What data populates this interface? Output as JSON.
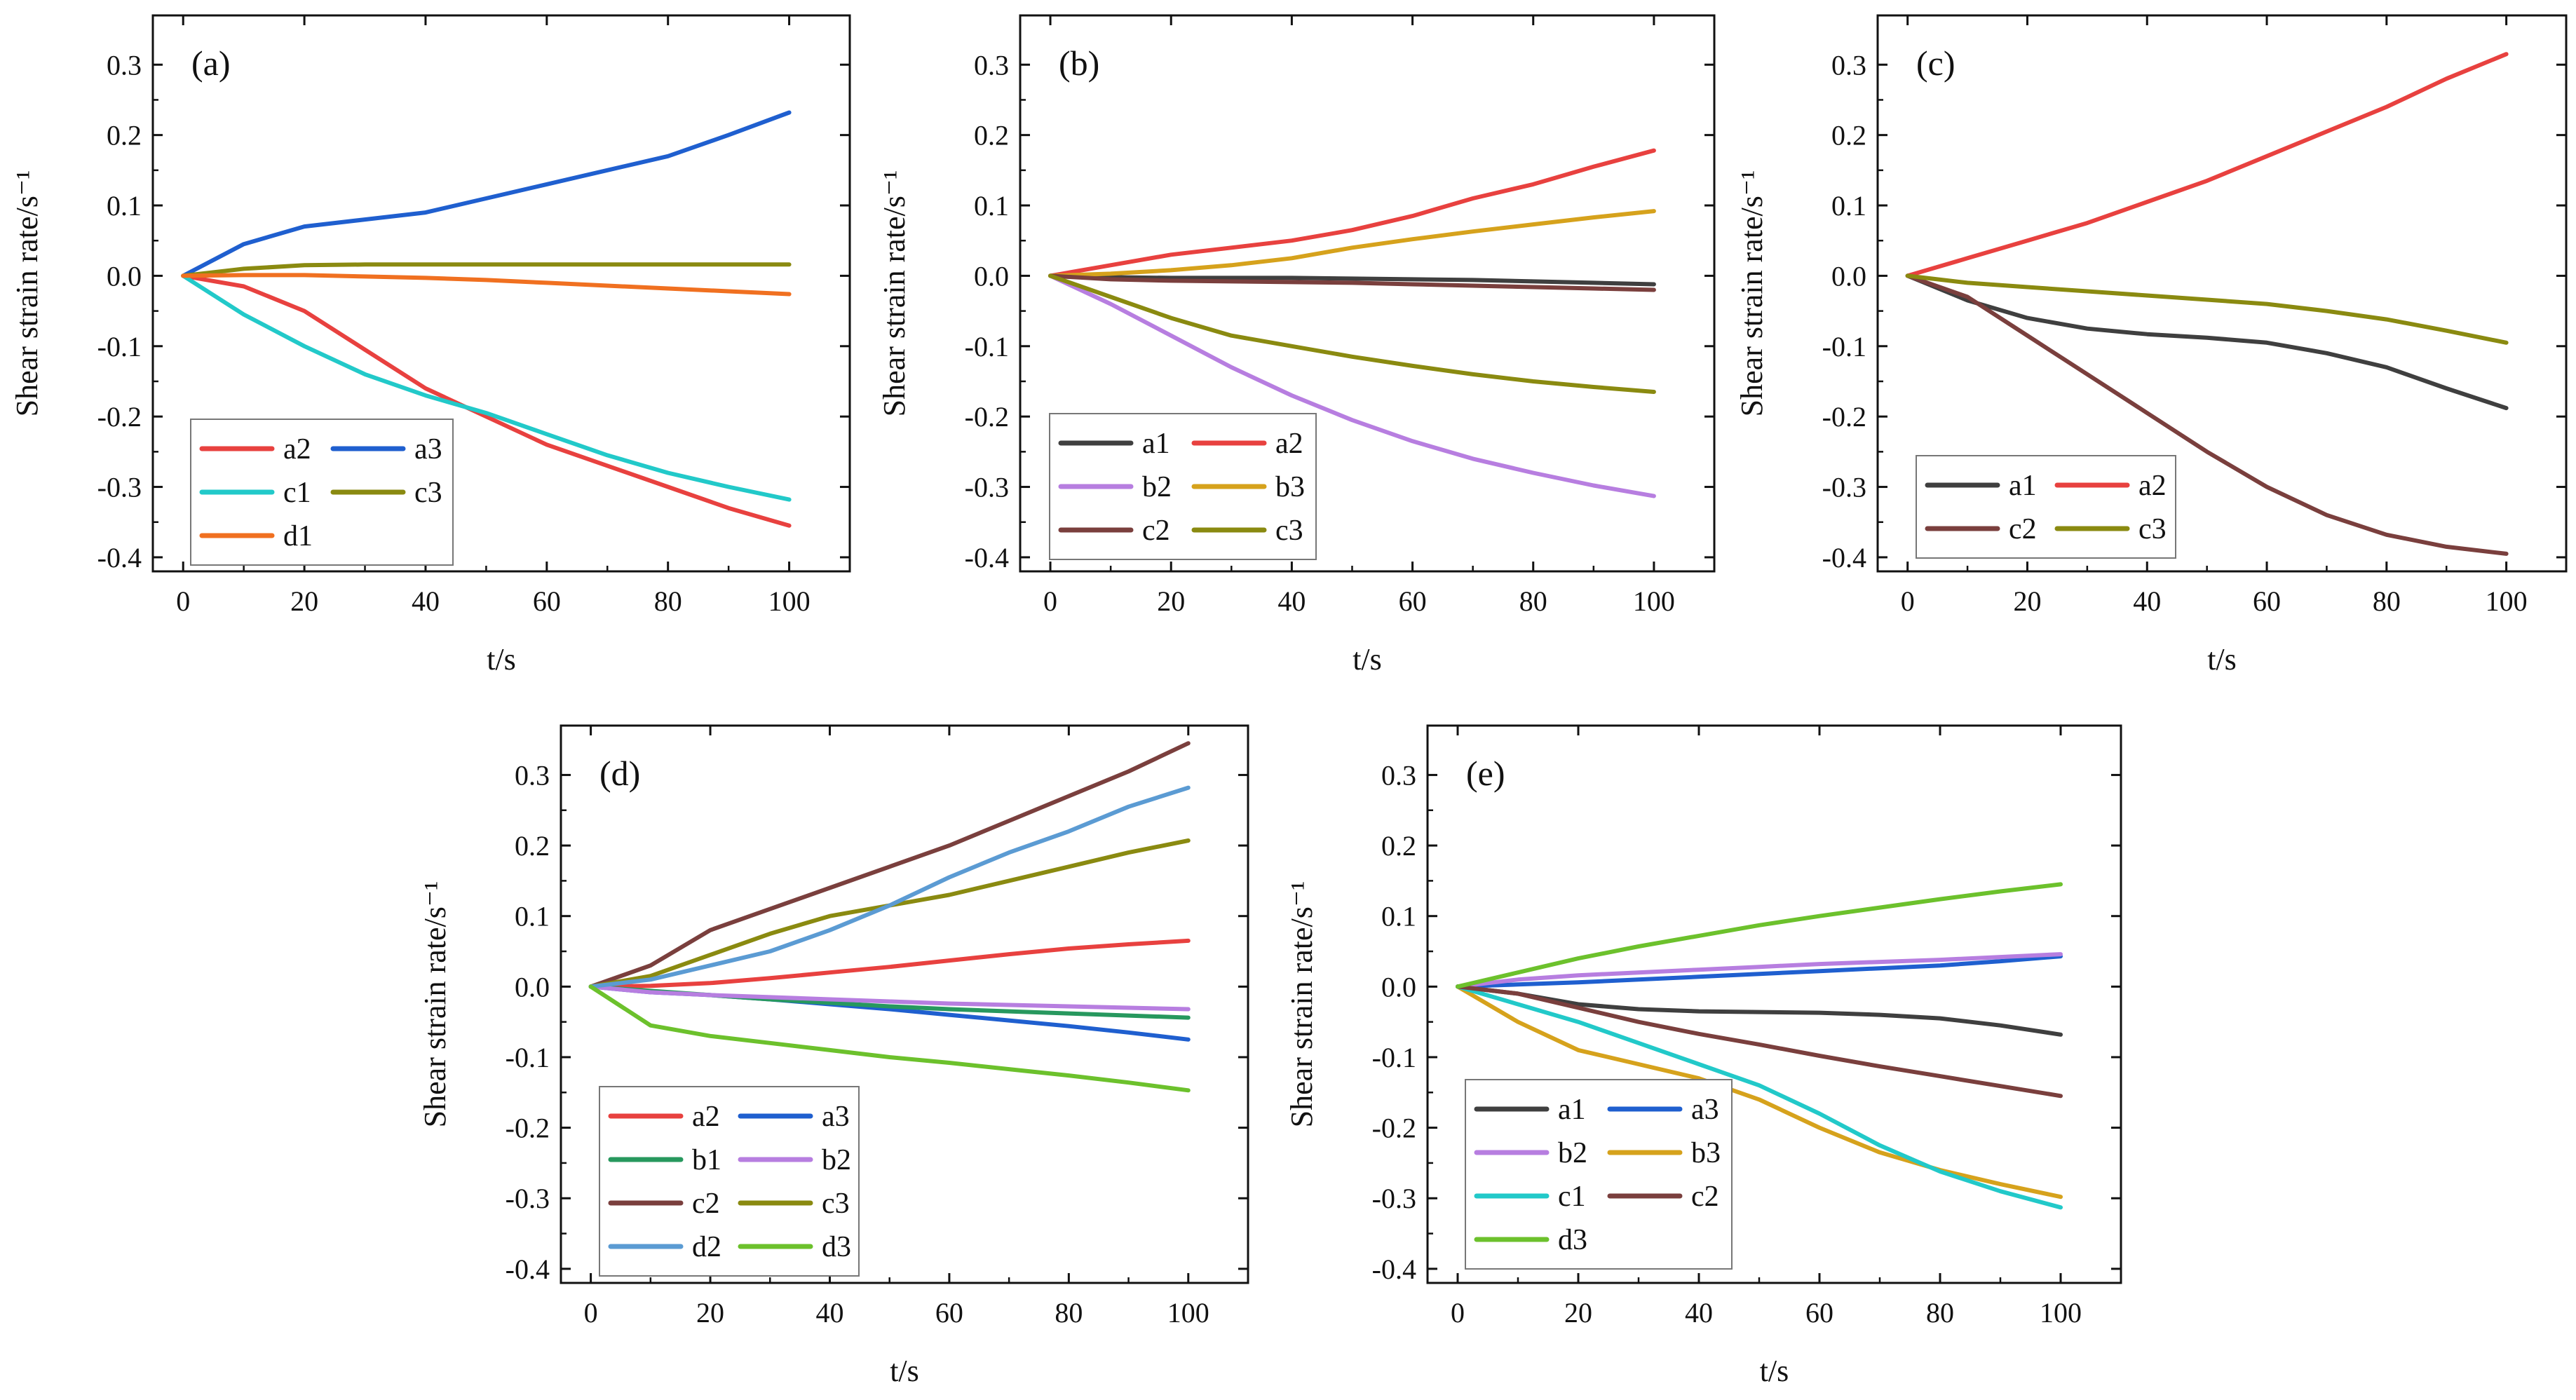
{
  "figure": {
    "colors": {
      "a1": "#3f3f3f",
      "a2": "#e8413f",
      "a3": "#1f5fcf",
      "b1": "#27985e",
      "b2": "#b77ee0",
      "b3": "#d6a21c",
      "c1": "#22c9c9",
      "c2": "#7a3f3d",
      "c3": "#8a8a10",
      "d1": "#f07020",
      "d2": "#5b9bd3",
      "d3": "#6cc12c"
    }
  },
  "chart_data": [
    {
      "id": "a",
      "type": "line",
      "panel_label": "(a)",
      "xlabel": "t/s",
      "ylabel": "Shear strain rate/s⁻¹",
      "xlim": [
        -5,
        110
      ],
      "ylim": [
        -0.42,
        0.37
      ],
      "xticks": [
        0,
        20,
        40,
        60,
        80,
        100
      ],
      "yticks": [
        -0.4,
        -0.3,
        -0.2,
        -0.1,
        0.0,
        0.1,
        0.2,
        0.3
      ],
      "ytick_labels": [
        "-0.4",
        "-0.3",
        "-0.2",
        "-0.1",
        "0.0",
        "0.1",
        "0.2",
        "0.3"
      ],
      "legend": {
        "position": "bottom-left",
        "columns": 2
      },
      "x": [
        0,
        10,
        20,
        30,
        40,
        50,
        60,
        70,
        80,
        90,
        100
      ],
      "series": [
        {
          "name": "a2",
          "values": [
            0,
            -0.015,
            -0.05,
            -0.105,
            -0.16,
            -0.2,
            -0.24,
            -0.27,
            -0.3,
            -0.33,
            -0.355
          ]
        },
        {
          "name": "a3",
          "values": [
            0,
            0.045,
            0.07,
            0.08,
            0.09,
            0.11,
            0.13,
            0.15,
            0.17,
            0.2,
            0.232
          ]
        },
        {
          "name": "c1",
          "values": [
            0,
            -0.055,
            -0.1,
            -0.14,
            -0.17,
            -0.195,
            -0.225,
            -0.255,
            -0.28,
            -0.3,
            -0.318
          ]
        },
        {
          "name": "c3",
          "values": [
            0,
            0.01,
            0.015,
            0.016,
            0.016,
            0.016,
            0.016,
            0.016,
            0.016,
            0.016,
            0.016
          ]
        },
        {
          "name": "d1",
          "values": [
            0,
            0.001,
            0.001,
            -0.001,
            -0.003,
            -0.006,
            -0.01,
            -0.014,
            -0.018,
            -0.022,
            -0.026
          ]
        }
      ]
    },
    {
      "id": "b",
      "type": "line",
      "panel_label": "(b)",
      "xlabel": "t/s",
      "ylabel": "Shear strain rate/s⁻¹",
      "xlim": [
        -5,
        110
      ],
      "ylim": [
        -0.42,
        0.37
      ],
      "xticks": [
        0,
        20,
        40,
        60,
        80,
        100
      ],
      "yticks": [
        -0.4,
        -0.3,
        -0.2,
        -0.1,
        0.0,
        0.1,
        0.2,
        0.3
      ],
      "ytick_labels": [
        "-0.4",
        "-0.3",
        "-0.2",
        "-0.1",
        "0.0",
        "0.1",
        "0.2",
        "0.3"
      ],
      "legend": {
        "position": "bottom-left",
        "columns": 2
      },
      "x": [
        0,
        10,
        20,
        30,
        40,
        50,
        60,
        70,
        80,
        90,
        100
      ],
      "series": [
        {
          "name": "a1",
          "values": [
            0,
            -0.002,
            -0.003,
            -0.003,
            -0.003,
            -0.004,
            -0.005,
            -0.006,
            -0.008,
            -0.01,
            -0.012
          ]
        },
        {
          "name": "a2",
          "values": [
            0,
            0.015,
            0.03,
            0.04,
            0.05,
            0.065,
            0.085,
            0.11,
            0.13,
            0.155,
            0.178
          ]
        },
        {
          "name": "b2",
          "values": [
            0,
            -0.04,
            -0.085,
            -0.13,
            -0.17,
            -0.205,
            -0.235,
            -0.26,
            -0.28,
            -0.298,
            -0.313
          ]
        },
        {
          "name": "b3",
          "values": [
            0,
            0.003,
            0.008,
            0.015,
            0.025,
            0.04,
            0.052,
            0.063,
            0.073,
            0.083,
            0.092
          ]
        },
        {
          "name": "c2",
          "values": [
            0,
            -0.005,
            -0.007,
            -0.008,
            -0.009,
            -0.01,
            -0.012,
            -0.014,
            -0.016,
            -0.018,
            -0.02
          ]
        },
        {
          "name": "c3",
          "values": [
            0,
            -0.03,
            -0.06,
            -0.085,
            -0.1,
            -0.115,
            -0.128,
            -0.14,
            -0.15,
            -0.158,
            -0.165
          ]
        }
      ]
    },
    {
      "id": "c",
      "type": "line",
      "panel_label": "(c)",
      "xlabel": "t/s",
      "ylabel": "Shear strain rate/s⁻¹",
      "xlim": [
        -5,
        110
      ],
      "ylim": [
        -0.42,
        0.37
      ],
      "xticks": [
        0,
        20,
        40,
        60,
        80,
        100
      ],
      "yticks": [
        -0.4,
        -0.3,
        -0.2,
        -0.1,
        0.0,
        0.1,
        0.2,
        0.3
      ],
      "ytick_labels": [
        "-0.4",
        "-0.3",
        "-0.2",
        "-0.1",
        "0.0",
        "0.1",
        "0.2",
        "0.3"
      ],
      "legend": {
        "position": "bottom-left",
        "columns": 2
      },
      "x": [
        0,
        10,
        20,
        30,
        40,
        50,
        60,
        70,
        80,
        90,
        100
      ],
      "series": [
        {
          "name": "a1",
          "values": [
            0,
            -0.035,
            -0.06,
            -0.075,
            -0.083,
            -0.088,
            -0.095,
            -0.11,
            -0.13,
            -0.16,
            -0.188
          ]
        },
        {
          "name": "a2",
          "values": [
            0,
            0.025,
            0.05,
            0.075,
            0.105,
            0.135,
            0.17,
            0.205,
            0.24,
            0.28,
            0.315
          ]
        },
        {
          "name": "c2",
          "values": [
            0,
            -0.03,
            -0.085,
            -0.14,
            -0.195,
            -0.25,
            -0.3,
            -0.34,
            -0.368,
            -0.385,
            -0.395
          ]
        },
        {
          "name": "c3",
          "values": [
            0,
            -0.01,
            -0.016,
            -0.022,
            -0.028,
            -0.034,
            -0.04,
            -0.05,
            -0.062,
            -0.078,
            -0.095
          ]
        }
      ]
    },
    {
      "id": "d",
      "type": "line",
      "panel_label": "(d)",
      "xlabel": "t/s",
      "ylabel": "Shear strain rate/s⁻¹",
      "xlim": [
        -5,
        110
      ],
      "ylim": [
        -0.42,
        0.37
      ],
      "xticks": [
        0,
        20,
        40,
        60,
        80,
        100
      ],
      "yticks": [
        -0.4,
        -0.3,
        -0.2,
        -0.1,
        0.0,
        0.1,
        0.2,
        0.3
      ],
      "ytick_labels": [
        "-0.4",
        "-0.3",
        "-0.2",
        "-0.1",
        "0.0",
        "0.1",
        "0.2",
        "0.3"
      ],
      "legend": {
        "position": "bottom-left",
        "columns": 2
      },
      "x": [
        0,
        10,
        20,
        30,
        40,
        50,
        60,
        70,
        80,
        90,
        100
      ],
      "series": [
        {
          "name": "a2",
          "values": [
            0,
            0.001,
            0.005,
            0.012,
            0.02,
            0.028,
            0.037,
            0.046,
            0.054,
            0.06,
            0.065
          ]
        },
        {
          "name": "a3",
          "values": [
            0,
            -0.008,
            -0.012,
            -0.018,
            -0.025,
            -0.032,
            -0.04,
            -0.048,
            -0.056,
            -0.065,
            -0.075
          ]
        },
        {
          "name": "b1",
          "values": [
            0,
            -0.006,
            -0.012,
            -0.018,
            -0.023,
            -0.028,
            -0.032,
            -0.035,
            -0.038,
            -0.041,
            -0.044
          ]
        },
        {
          "name": "b2",
          "values": [
            0,
            -0.008,
            -0.012,
            -0.015,
            -0.018,
            -0.021,
            -0.024,
            -0.026,
            -0.028,
            -0.03,
            -0.032
          ]
        },
        {
          "name": "c2",
          "values": [
            0,
            0.03,
            0.08,
            0.11,
            0.14,
            0.17,
            0.2,
            0.235,
            0.27,
            0.305,
            0.345
          ]
        },
        {
          "name": "c3",
          "values": [
            0,
            0.015,
            0.045,
            0.075,
            0.1,
            0.115,
            0.13,
            0.15,
            0.17,
            0.19,
            0.207
          ]
        },
        {
          "name": "d2",
          "values": [
            0,
            0.01,
            0.03,
            0.05,
            0.08,
            0.115,
            0.155,
            0.19,
            0.22,
            0.255,
            0.282
          ]
        },
        {
          "name": "d3",
          "values": [
            0,
            -0.055,
            -0.07,
            -0.08,
            -0.09,
            -0.1,
            -0.108,
            -0.117,
            -0.126,
            -0.136,
            -0.147
          ]
        }
      ]
    },
    {
      "id": "e",
      "type": "line",
      "panel_label": "(e)",
      "xlabel": "t/s",
      "ylabel": "Shear strain rate/s⁻¹",
      "xlim": [
        -5,
        110
      ],
      "ylim": [
        -0.42,
        0.37
      ],
      "xticks": [
        0,
        20,
        40,
        60,
        80,
        100
      ],
      "yticks": [
        -0.4,
        -0.3,
        -0.2,
        -0.1,
        0.0,
        0.1,
        0.2,
        0.3
      ],
      "ytick_labels": [
        "-0.4",
        "-0.3",
        "-0.2",
        "-0.1",
        "0.0",
        "0.1",
        "0.2",
        "0.3"
      ],
      "legend": {
        "position": "bottom-left",
        "columns": 2
      },
      "x": [
        0,
        10,
        20,
        30,
        40,
        50,
        60,
        70,
        80,
        90,
        100
      ],
      "series": [
        {
          "name": "a1",
          "values": [
            0,
            -0.01,
            -0.025,
            -0.032,
            -0.035,
            -0.036,
            -0.037,
            -0.04,
            -0.045,
            -0.055,
            -0.068
          ]
        },
        {
          "name": "a3",
          "values": [
            0,
            0.003,
            0.006,
            0.01,
            0.014,
            0.018,
            0.022,
            0.026,
            0.03,
            0.036,
            0.043
          ]
        },
        {
          "name": "b2",
          "values": [
            0,
            0.01,
            0.016,
            0.02,
            0.024,
            0.028,
            0.032,
            0.035,
            0.038,
            0.042,
            0.046
          ]
        },
        {
          "name": "b3",
          "values": [
            0,
            -0.05,
            -0.09,
            -0.11,
            -0.13,
            -0.16,
            -0.2,
            -0.235,
            -0.26,
            -0.28,
            -0.298
          ]
        },
        {
          "name": "c1",
          "values": [
            0,
            -0.025,
            -0.05,
            -0.08,
            -0.11,
            -0.14,
            -0.18,
            -0.225,
            -0.262,
            -0.29,
            -0.313
          ]
        },
        {
          "name": "c2",
          "values": [
            0,
            -0.01,
            -0.03,
            -0.05,
            -0.067,
            -0.082,
            -0.098,
            -0.113,
            -0.127,
            -0.141,
            -0.155
          ]
        },
        {
          "name": "d3",
          "values": [
            0,
            0.02,
            0.04,
            0.057,
            0.072,
            0.087,
            0.1,
            0.112,
            0.124,
            0.135,
            0.145
          ]
        }
      ]
    }
  ]
}
